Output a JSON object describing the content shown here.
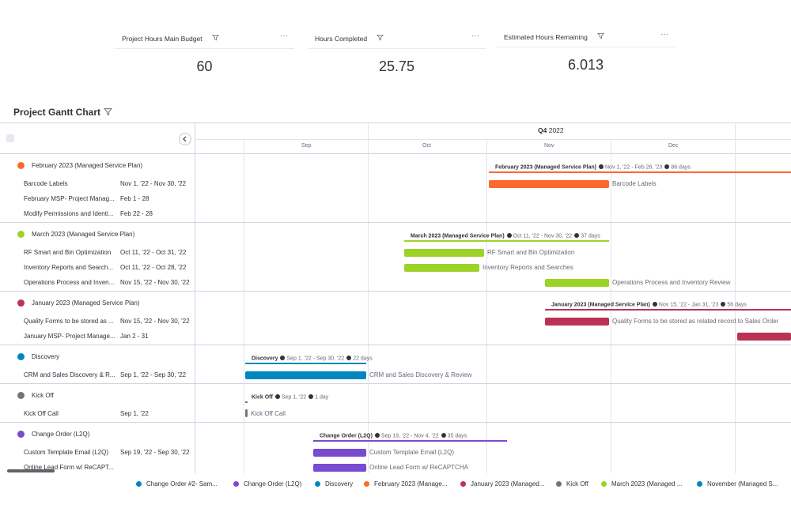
{
  "kpis": [
    {
      "title": "Project Hours Main Budget",
      "value": "60"
    },
    {
      "title": "Hours Completed",
      "value": "25.75"
    },
    {
      "title": "Estimated Hours Remaining",
      "value": "6.013"
    }
  ],
  "kpi_menu_icon": "more-dots-icon",
  "chart": {
    "title": "Project Gantt Chart",
    "quarter_prefix": "Q4",
    "quarter_year": "2022",
    "months": [
      "Sep",
      "Oct",
      "Nov",
      "Dec"
    ]
  },
  "groups": [
    {
      "name": "February 2023 (Managed Service Plan)",
      "color": "#fb6a2d",
      "summary": {
        "name": "February 2023 (Managed Service Plan)",
        "range": "Nov 1, '22 - Feb 28, '23",
        "days": "86 days"
      },
      "tasks": [
        {
          "name": "Barcode Labels",
          "dates": "Nov 1, '22 - Nov 30, '22",
          "bar_label": "Barcode Labels"
        },
        {
          "name": "February MSP- Project Manag...",
          "dates": "Feb 1 - 28",
          "bar_label": ""
        },
        {
          "name": "Modify Permissions and Identi...",
          "dates": "Feb 22 - 28",
          "bar_label": ""
        }
      ]
    },
    {
      "name": "March 2023 (Managed Service Plan)",
      "color": "#9cd326",
      "summary": {
        "name": "March 2023 (Managed Service Plan)",
        "range": "Oct 11, '22 - Nov 30, '22",
        "days": "37 days"
      },
      "tasks": [
        {
          "name": "RF Smart and Bin Optimization",
          "dates": "Oct 11, '22 - Oct 31, '22",
          "bar_label": "RF Smart and Bin Optimization"
        },
        {
          "name": "Inventory Reports and Search...",
          "dates": "Oct 11, '22 - Oct 28, '22",
          "bar_label": "Inventory Reports and Searches"
        },
        {
          "name": "Operations Process and Inven...",
          "dates": "Nov 15, '22 - Nov 30, '22",
          "bar_label": "Operations Process and Inventory Review"
        }
      ]
    },
    {
      "name": "January 2023 (Managed Service Plan)",
      "color": "#bb3354",
      "summary": {
        "name": "January 2023 (Managed Service Plan)",
        "range": "Nov 15, '22 - Jan 31, '23",
        "days": "56 days"
      },
      "tasks": [
        {
          "name": "Quality Forms to be stored as ...",
          "dates": "Nov 15, '22 - Nov 30, '22",
          "bar_label": "Quality Forms to be stored as related record to Sales Order"
        },
        {
          "name": "January MSP- Project Manage...",
          "dates": "Jan 2 - 31",
          "bar_label": ""
        }
      ]
    },
    {
      "name": "Discovery",
      "color": "#0086c0",
      "summary": {
        "name": "Discovery",
        "range": "Sep 1, '22 - Sep 30, '22",
        "days": "22 days"
      },
      "tasks": [
        {
          "name": "CRM and Sales Discovery & R...",
          "dates": "Sep 1, '22 - Sep 30, '22",
          "bar_label": "CRM and Sales Discovery & Review"
        }
      ]
    },
    {
      "name": "Kick Off",
      "color": "#757575",
      "summary": {
        "name": "Kick Off",
        "range": "Sep 1, '22",
        "days": "1 day"
      },
      "tasks": [
        {
          "name": "Kick Off Call",
          "dates": "Sep 1, '22",
          "bar_label": "Kick Off Call"
        }
      ]
    },
    {
      "name": "Change Order (L2Q)",
      "color": "#784bd1",
      "summary": {
        "name": "Change Order (L2Q)",
        "range": "Sep 19, '22 - Nov 4, '22",
        "days": "35 days"
      },
      "tasks": [
        {
          "name": "Custom Template Email (L2Q)",
          "dates": "Sep 19, '22 - Sep 30, '22",
          "bar_label": "Custom Template Email (L2Q)"
        },
        {
          "name": "Online Lead Form w/ ReCAPT...",
          "dates": "",
          "bar_label": "Online Lead Form w/ ReCAPTCHA"
        }
      ]
    }
  ],
  "legend": [
    {
      "label": "Change Order #2- Sam...",
      "color": "#0086c0"
    },
    {
      "label": "Change Order (L2Q)",
      "color": "#784bd1"
    },
    {
      "label": "Discovery",
      "color": "#0086c0"
    },
    {
      "label": "February 2023 (Manage...",
      "color": "#fb6a2d"
    },
    {
      "label": "January 2023 (Managed...",
      "color": "#bb3354"
    },
    {
      "label": "Kick Off",
      "color": "#757575"
    },
    {
      "label": "March 2023 (Managed ...",
      "color": "#9cd326"
    },
    {
      "label": "November (Managed S...",
      "color": "#0086c0"
    }
  ]
}
